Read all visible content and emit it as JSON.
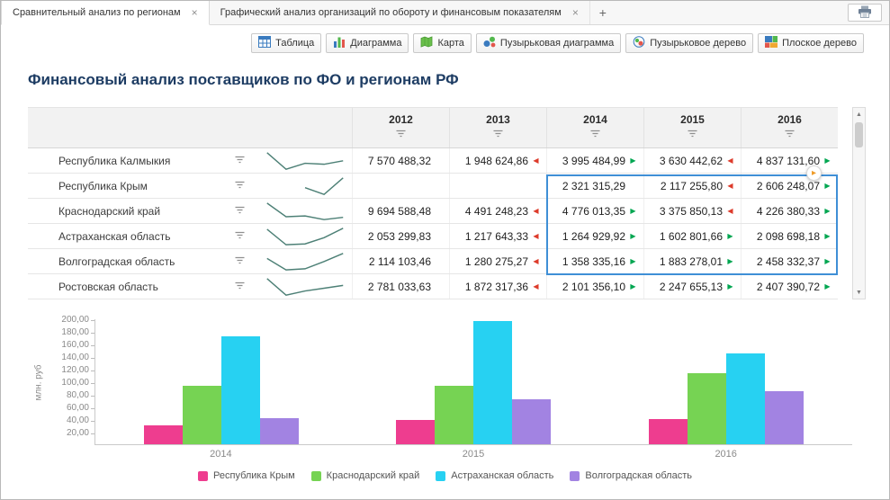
{
  "tabbar": {
    "tabs": [
      {
        "label": "Сравнительный анализ по регионам",
        "close": "×",
        "active": true
      },
      {
        "label": "Графический анализ организаций по обороту и финансовым показателям",
        "close": "×",
        "active": false
      }
    ],
    "new_tab_label": "+",
    "print_button": {
      "icon": "print-icon"
    }
  },
  "toolbar": {
    "buttons": [
      {
        "label": "Таблица",
        "icon": "table-icon"
      },
      {
        "label": "Диаграмма",
        "icon": "bar-chart-icon"
      },
      {
        "label": "Карта",
        "icon": "map-icon"
      },
      {
        "label": "Пузырьковая диаграмма",
        "icon": "bubble-chart-icon"
      },
      {
        "label": "Пузырьковое дерево",
        "icon": "bubble-tree-icon"
      },
      {
        "label": "Плоское дерево",
        "icon": "treemap-icon"
      }
    ]
  },
  "title": "Финансовый анализ поставщиков по ФО и регионам РФ",
  "table": {
    "year_columns": [
      "2012",
      "2013",
      "2014",
      "2015",
      "2016"
    ],
    "rows": [
      {
        "region": "Республика Калмыкия",
        "values": [
          "7 570 488,32",
          "1 948 624,86",
          "3 995 484,99",
          "3 630 442,62",
          "4 837 131,60"
        ],
        "trends": [
          "",
          "down",
          "up",
          "down",
          "up"
        ],
        "spark": [
          [
            2,
            2
          ],
          [
            26,
            22
          ],
          [
            50,
            14.8
          ],
          [
            74,
            16
          ],
          [
            98,
            11.8
          ]
        ]
      },
      {
        "region": "Республика Крым",
        "values": [
          "",
          "",
          "2 321 315,29",
          "2 117 255,80",
          "2 606 248,07"
        ],
        "trends": [
          "",
          "",
          "",
          "down",
          "up"
        ],
        "spark": [
          [
            50,
            13.8
          ],
          [
            74,
            22
          ],
          [
            98,
            2
          ]
        ]
      },
      {
        "region": "Краснодарский край",
        "values": [
          "9 694 588,48",
          "4 491 248,23",
          "4 776 013,35",
          "3 375 850,13",
          "4 226 380,33"
        ],
        "trends": [
          "",
          "down",
          "up",
          "down",
          "up"
        ],
        "spark": [
          [
            2,
            2
          ],
          [
            26,
            18.5
          ],
          [
            50,
            17.6
          ],
          [
            74,
            22
          ],
          [
            98,
            19.3
          ]
        ]
      },
      {
        "region": "Астраханская область",
        "values": [
          "2 053 299,83",
          "1 217 643,33",
          "1 264 929,92",
          "1 602 801,66",
          "2 098 698,18"
        ],
        "trends": [
          "",
          "down",
          "up",
          "up",
          "up"
        ],
        "spark": [
          [
            2,
            3.2
          ],
          [
            26,
            22
          ],
          [
            50,
            21
          ],
          [
            74,
            13.4
          ],
          [
            98,
            2
          ]
        ]
      },
      {
        "region": "Волгоградская область",
        "values": [
          "2 114 103,46",
          "1 280 275,27",
          "1 358 335,16",
          "1 883 278,01",
          "2 458 332,37"
        ],
        "trends": [
          "",
          "down",
          "up",
          "up",
          "up"
        ],
        "spark": [
          [
            2,
            8
          ],
          [
            26,
            22
          ],
          [
            50,
            20.6
          ],
          [
            74,
            11.8
          ],
          [
            98,
            2
          ]
        ]
      },
      {
        "region": "Ростовская область",
        "values": [
          "2 781 033,63",
          "1 872 317,36",
          "2 101 356,10",
          "2 247 655,13",
          "2 407 390,72"
        ],
        "trends": [
          "",
          "down",
          "up",
          "up",
          "up"
        ],
        "spark": [
          [
            2,
            2
          ],
          [
            26,
            22
          ],
          [
            50,
            17
          ],
          [
            74,
            13.6
          ],
          [
            98,
            10.2
          ]
        ]
      }
    ]
  },
  "chart_data": {
    "type": "bar",
    "title": "",
    "xlabel": "",
    "ylabel": "млн. руб",
    "categories": [
      "2014",
      "2015",
      "2016"
    ],
    "series": [
      {
        "name": "Республика Крым",
        "color": "#ee3d8f",
        "values": [
          30,
          38,
          40
        ]
      },
      {
        "name": "Краснодарский край",
        "color": "#76d353",
        "values": [
          93,
          93,
          113
        ]
      },
      {
        "name": "Астраханская область",
        "color": "#27d1f2",
        "values": [
          172,
          195,
          144
        ]
      },
      {
        "name": "Волгоградская область",
        "color": "#a283e2",
        "values": [
          42,
          72,
          85
        ]
      }
    ],
    "ylim": [
      0,
      200
    ],
    "yticks": [
      "200,00",
      "180,00",
      "160,00",
      "140,00",
      "120,00",
      "100,00",
      "80,00",
      "60,00",
      "40,00",
      "20,00"
    ],
    "grid": false,
    "legend_position": "bottom"
  },
  "scrollbar": {
    "up": "▲",
    "down": "▼"
  },
  "expand_handle": {
    "glyph": "▸"
  },
  "colors": {
    "trend_up": "#00a651",
    "trend_down": "#dd3b2b",
    "selection": "#3f8fd6",
    "title": "#1d3c63",
    "sparkline": "#4d8076"
  }
}
